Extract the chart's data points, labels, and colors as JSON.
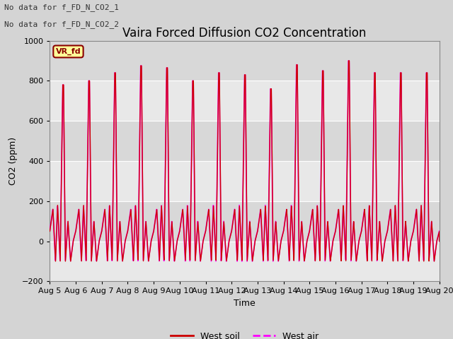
{
  "title": "Vaira Forced Diffusion CO2 Concentration",
  "xlabel": "Time",
  "ylabel": "CO2 (ppm)",
  "ylim": [
    -200,
    1000
  ],
  "yticks": [
    -200,
    0,
    200,
    400,
    600,
    800,
    1000
  ],
  "xtick_labels": [
    "Aug 5",
    "Aug 6",
    "Aug 7",
    "Aug 8",
    "Aug 9",
    "Aug 10",
    "Aug 11",
    "Aug 12",
    "Aug 13",
    "Aug 14",
    "Aug 15",
    "Aug 16",
    "Aug 17",
    "Aug 18",
    "Aug 19",
    "Aug 20"
  ],
  "fig_bg_color": "#d4d4d4",
  "plot_bg_color": "#e8e8e8",
  "soil_color": "#cc0000",
  "air_color": "#ff00ff",
  "no_data_text_1": "No data for f_FD_N_CO2_1",
  "no_data_text_2": "No data for f_FD_N_CO2_2",
  "legend_box_label": "VR_fd",
  "legend1_label": "West soil",
  "legend2_label": "West air",
  "title_fontsize": 12,
  "axis_fontsize": 9,
  "tick_fontsize": 8,
  "legend_fontsize": 9,
  "n_days": 15,
  "peaks": [
    780,
    800,
    840,
    875,
    865,
    800,
    840,
    830,
    760,
    880,
    850,
    900,
    840,
    840,
    840
  ],
  "band_color_1": "#e8e8e8",
  "band_color_2": "#d8d8d8"
}
